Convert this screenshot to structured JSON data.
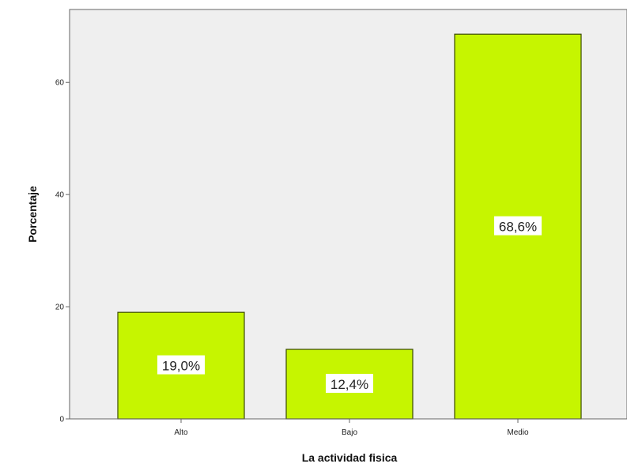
{
  "chart_data": {
    "type": "bar",
    "categories": [
      "Alto",
      "Bajo",
      "Medio"
    ],
    "values": [
      19.0,
      12.4,
      68.6
    ],
    "data_labels": [
      "19,0%",
      "12,4%",
      "68,6%"
    ],
    "title": "",
    "xlabel": "La actividad fisica",
    "ylabel": "Porcentaje",
    "ylim": [
      0,
      73
    ],
    "yticks": [
      0,
      20,
      40,
      60
    ],
    "ytick_labels": [
      "0",
      "20",
      "40",
      "60"
    ],
    "grid": false,
    "legend": "none",
    "colors": {
      "bar_fill": "#c6f500",
      "bar_stroke": "#3a4a00",
      "plot_background": "#efefef",
      "label_background": "#ffffff"
    }
  }
}
